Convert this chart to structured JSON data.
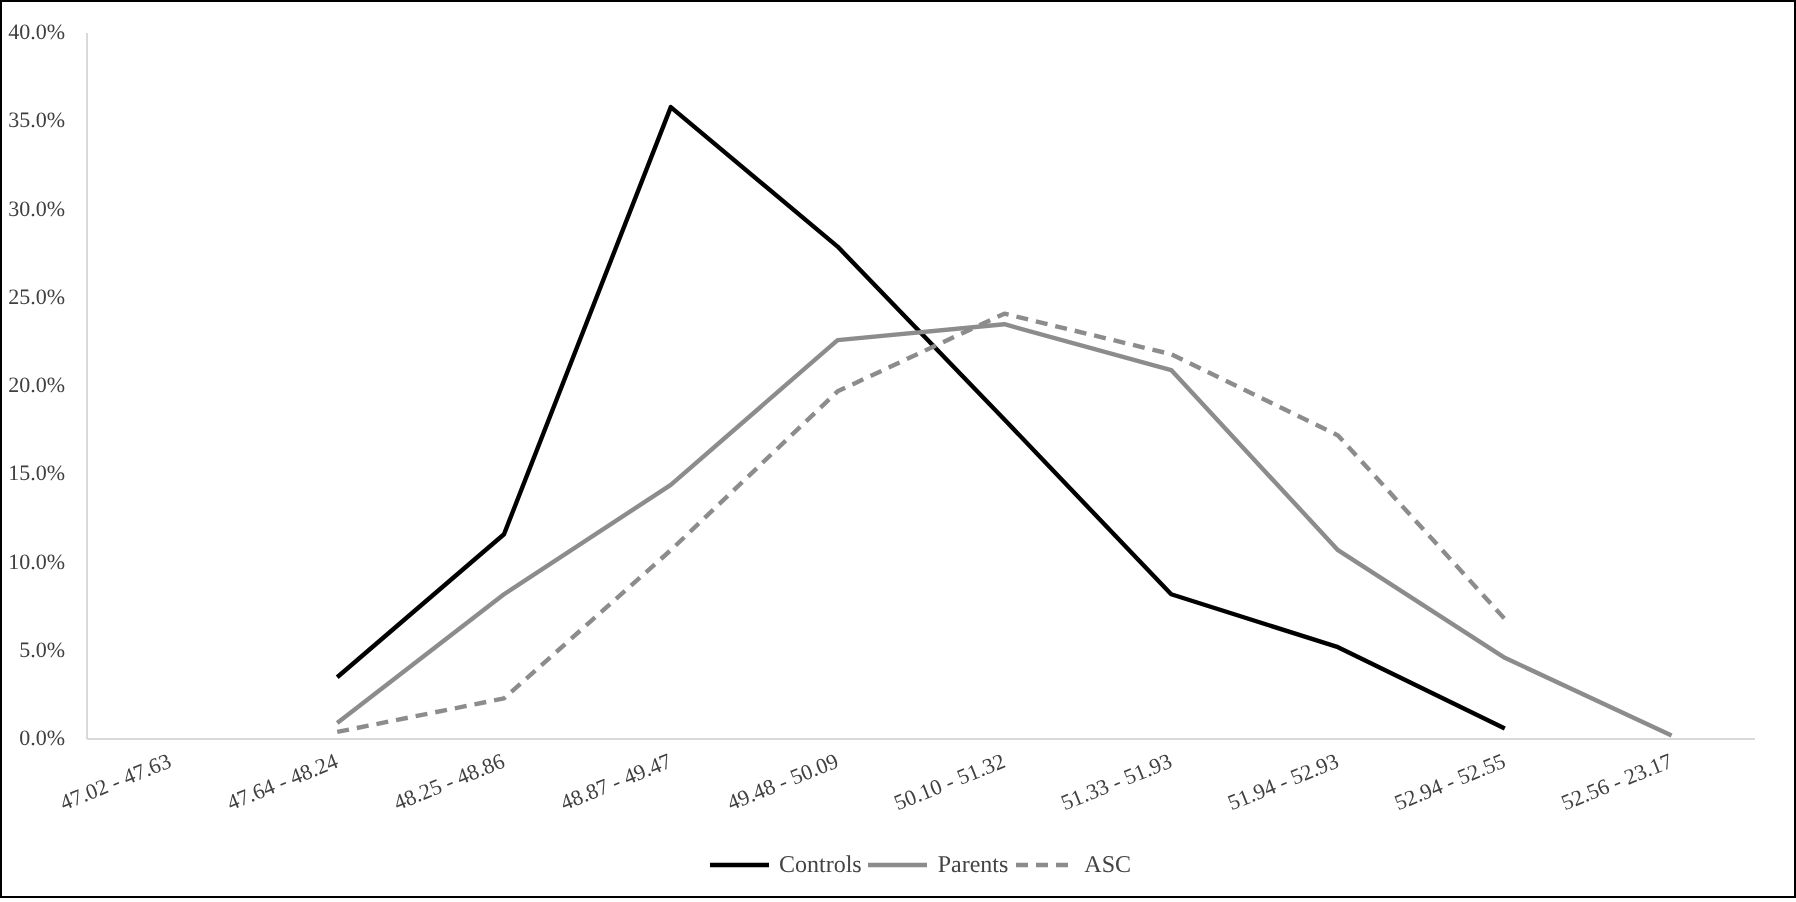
{
  "chart_data": {
    "type": "line",
    "categories": [
      "47.02 - 47.63",
      "47.64 - 48.24",
      "48.25 - 48.86",
      "48.87 - 49.47",
      "49.48 - 50.09",
      "50.10 - 51.32",
      "51.33 - 51.93",
      "51.94 - 52.93",
      "52.94 - 52.55",
      "52.56 - 23.17"
    ],
    "series": [
      {
        "name": "Controls",
        "color": "#000000",
        "line_style": "solid",
        "values": [
          null,
          3.5,
          11.6,
          35.8,
          27.9,
          18.1,
          8.2,
          5.2,
          0.6,
          null
        ]
      },
      {
        "name": "Parents",
        "color": "#8c8c8c",
        "line_style": "solid",
        "values": [
          null,
          0.9,
          8.2,
          14.4,
          22.6,
          23.5,
          20.9,
          10.7,
          4.6,
          0.2
        ]
      },
      {
        "name": "ASC",
        "color": "#8c8c8c",
        "line_style": "dashed",
        "values": [
          null,
          0.4,
          2.3,
          10.7,
          19.7,
          24.1,
          21.8,
          17.2,
          6.8,
          null
        ]
      }
    ],
    "ylim": [
      0,
      40
    ],
    "yticks": [
      {
        "value": 0,
        "label": "0.0%"
      },
      {
        "value": 5,
        "label": "5.0%"
      },
      {
        "value": 10,
        "label": "10.0%"
      },
      {
        "value": 15,
        "label": "15.0%"
      },
      {
        "value": 20,
        "label": "20.0%"
      },
      {
        "value": 25,
        "label": "25.0%"
      },
      {
        "value": 30,
        "label": "30.0%"
      },
      {
        "value": 35,
        "label": "35.0%"
      },
      {
        "value": 40,
        "label": "40.0%"
      }
    ],
    "grid": false,
    "legend": "bottom",
    "marker": "none"
  }
}
